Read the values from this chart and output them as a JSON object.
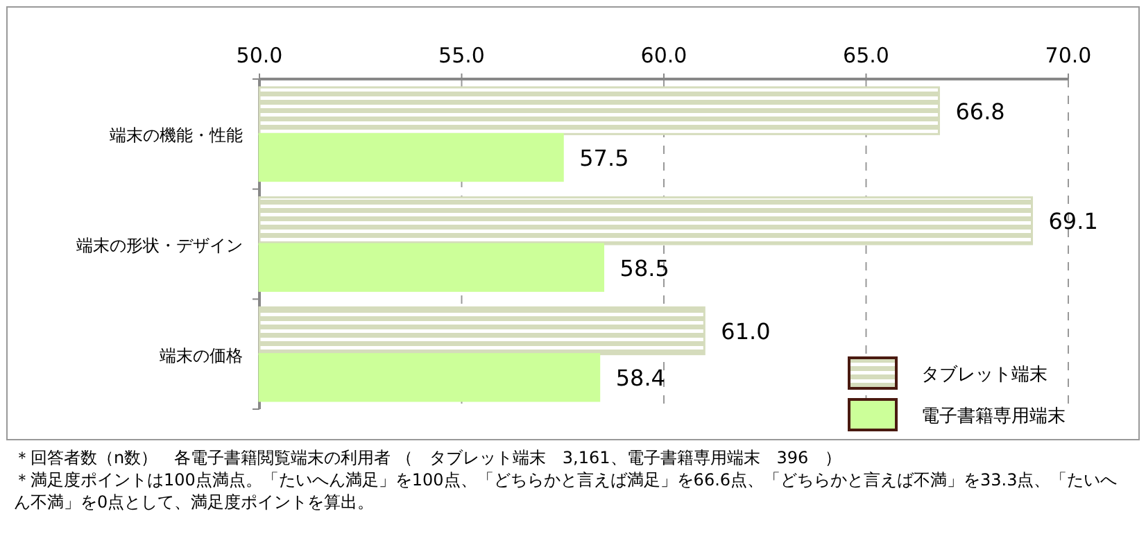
{
  "chart_data": {
    "type": "bar",
    "orientation": "horizontal",
    "categories": [
      "端末の機能・性能",
      "端末の形状・デザイン",
      "端末の価格"
    ],
    "series": [
      {
        "name": "タブレット端末",
        "color": "#d5dcbc",
        "values": [
          66.8,
          69.1,
          61.0
        ],
        "value_labels": [
          "66.8",
          "69.1",
          "61.0"
        ]
      },
      {
        "name": "電子書籍専用端末",
        "color": "#ccff99",
        "values": [
          57.5,
          58.5,
          58.4
        ],
        "value_labels": [
          "57.5",
          "58.5",
          "58.4"
        ]
      }
    ],
    "xlim": [
      50,
      70
    ],
    "xticks": [
      {
        "value": 50,
        "label": "50.0"
      },
      {
        "value": 55,
        "label": "55.0"
      },
      {
        "value": 60,
        "label": "60.0"
      },
      {
        "value": 65,
        "label": "65.0"
      },
      {
        "value": 70,
        "label": "70.0"
      }
    ],
    "grid": "x",
    "legend": "bottom right",
    "annotations": [
      "＊回答者数（n数）　各電子書籍閲覧端末の利用者 （　タブレット端末　3,161、電子書籍専用端末　396　）",
      "＊満足度ポイントは100点満点。「たいへん満足」を100点、「どちらかと言えば満足」を66.6点、「どちらかと言えば不満」を33.3点、「たいへん不満」を0点として、満足度ポイントを算出。"
    ]
  }
}
